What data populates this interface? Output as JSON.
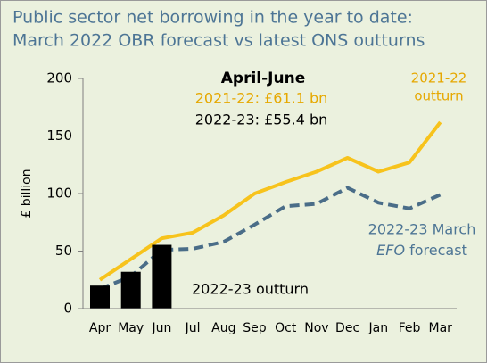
{
  "chart_data": {
    "type": "line",
    "title": [
      "Public sector net borrowing in the year to date:",
      "March 2022 OBR forecast vs latest ONS outturns"
    ],
    "ylabel": "£ billion",
    "categories": [
      "Apr",
      "May",
      "Jun",
      "Jul",
      "Aug",
      "Sep",
      "Oct",
      "Nov",
      "Dec",
      "Jan",
      "Feb",
      "Mar"
    ],
    "series": [
      {
        "type": "line",
        "color": "#f7c31c",
        "dashed": false,
        "values": [
          25,
          43,
          61.1,
          66,
          81,
          100,
          110,
          119,
          131,
          119,
          127,
          162
        ]
      },
      {
        "type": "line",
        "color": "#4a6d88",
        "dashed": true,
        "values": [
          17,
          28,
          51,
          52,
          58,
          73,
          89,
          91,
          105,
          92,
          87,
          99
        ]
      },
      {
        "type": "bar",
        "color": "#000000",
        "values": [
          20,
          32,
          55.4,
          null,
          null,
          null,
          null,
          null,
          null,
          null,
          null,
          null
        ]
      }
    ],
    "ylim": [
      0,
      200
    ],
    "yticks": [
      0,
      50,
      100,
      150,
      200
    ],
    "grid": false,
    "annotations": {
      "callout_heading": "April-June",
      "callout_lines": [
        "2021-22: £61.1 bn",
        "2022-23: £55.4 bn"
      ],
      "outturn_2122": [
        "2021-22",
        "outturn"
      ],
      "forecast_line1": "2022-23 March",
      "forecast_line2": [
        "EFO",
        " forecast"
      ],
      "outturn_2223": "2022-23 outturn"
    }
  }
}
